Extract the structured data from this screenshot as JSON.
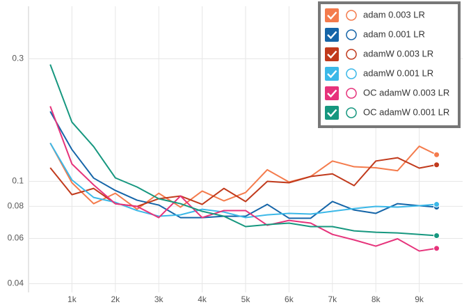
{
  "chart_data": {
    "type": "line",
    "x": [
      500,
      1000,
      1500,
      2000,
      2500,
      3000,
      3500,
      4000,
      4500,
      5000,
      5500,
      6000,
      6500,
      7000,
      7500,
      8000,
      8500,
      9000,
      9400
    ],
    "xlim": [
      0,
      10000
    ],
    "xticks": [
      {
        "value": 1000,
        "label": "1k"
      },
      {
        "value": 2000,
        "label": "2k"
      },
      {
        "value": 3000,
        "label": "3k"
      },
      {
        "value": 4000,
        "label": "4k"
      },
      {
        "value": 5000,
        "label": "5k"
      },
      {
        "value": 6000,
        "label": "6k"
      },
      {
        "value": 7000,
        "label": "7k"
      },
      {
        "value": 8000,
        "label": "8k"
      },
      {
        "value": 9000,
        "label": "9k"
      }
    ],
    "ylim": [
      0.037,
      0.48
    ],
    "yticks": [
      0.04,
      0.06,
      0.08,
      0.1,
      0.3
    ],
    "log_y": true,
    "grid": true,
    "legend": "upper right",
    "series": [
      {
        "name": "adam 0.003 LR",
        "color": "#f47b4c",
        "values": [
          0.141,
          0.0988,
          0.0819,
          0.0899,
          0.0779,
          0.0899,
          0.0794,
          0.0917,
          0.084,
          0.0905,
          0.111,
          0.0994,
          0.1045,
          0.12,
          0.114,
          0.113,
          0.11,
          0.137,
          0.127
        ]
      },
      {
        "name": "adam 0.001 LR",
        "color": "#1565a8",
        "values": [
          0.187,
          0.133,
          0.103,
          0.0922,
          0.0845,
          0.0809,
          0.0723,
          0.0723,
          0.0732,
          0.0732,
          0.0814,
          0.0719,
          0.0719,
          0.0835,
          0.0774,
          0.0751,
          0.0819,
          0.0804,
          0.0794
        ]
      },
      {
        "name": "adamW 0.003 LR",
        "color": "#c13a1c",
        "values": [
          0.113,
          0.0888,
          0.0939,
          0.0819,
          0.0799,
          0.0856,
          0.0877,
          0.0814,
          0.0939,
          0.0835,
          0.1,
          0.0988,
          0.1045,
          0.107,
          0.0963,
          0.12,
          0.1236,
          0.1126,
          0.116
        ]
      },
      {
        "name": "adamW 0.001 LR",
        "color": "#3bb8e8",
        "values": [
          0.141,
          0.1013,
          0.0866,
          0.0829,
          0.077,
          0.0732,
          0.0741,
          0.0779,
          0.076,
          0.0723,
          0.0741,
          0.0751,
          0.0746,
          0.0765,
          0.0784,
          0.0799,
          0.0794,
          0.0804,
          0.0814
        ]
      },
      {
        "name": "OC adamW 0.003 LR",
        "color": "#e6337b",
        "values": [
          0.196,
          0.1169,
          0.0969,
          0.0819,
          0.0799,
          0.0723,
          0.0877,
          0.0723,
          0.077,
          0.077,
          0.0675,
          0.0705,
          0.0688,
          0.0622,
          0.0592,
          0.056,
          0.0598,
          0.0536,
          0.0549
        ]
      },
      {
        "name": "OC adamW 0.001 LR",
        "color": "#16977f",
        "values": [
          0.285,
          0.17,
          0.1366,
          0.1032,
          0.0951,
          0.0856,
          0.0819,
          0.0765,
          0.0732,
          0.0667,
          0.0679,
          0.0688,
          0.0667,
          0.0667,
          0.0642,
          0.0634,
          0.063,
          0.0622,
          0.0615
        ]
      }
    ]
  }
}
